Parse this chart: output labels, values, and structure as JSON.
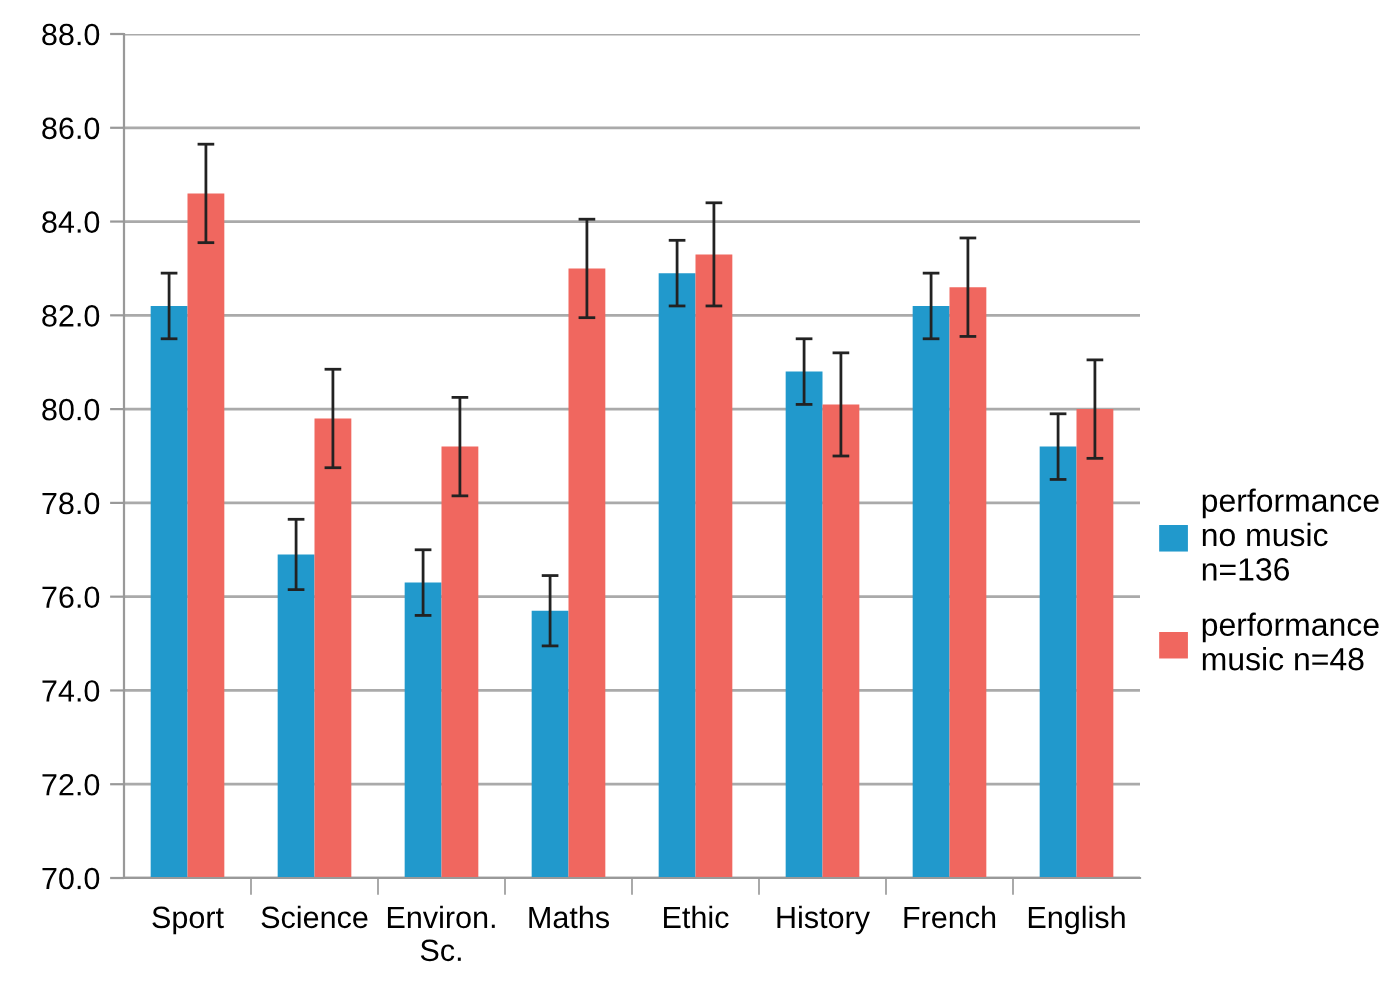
{
  "chart_data": {
    "type": "bar",
    "categories": [
      "Sport",
      "Science",
      "Environ.\nSc.",
      "Maths",
      "Ethic",
      "History",
      "French",
      "English"
    ],
    "series": [
      {
        "name": "performance\nno music\nn=136",
        "color": "#2199cc",
        "values": [
          82.2,
          76.9,
          76.3,
          75.7,
          82.9,
          80.8,
          82.2,
          79.2
        ],
        "errors": [
          0.7,
          0.75,
          0.7,
          0.75,
          0.7,
          0.7,
          0.7,
          0.7
        ]
      },
      {
        "name": "performance\nmusic n=48",
        "color": "#f0675f",
        "values": [
          84.6,
          79.8,
          79.2,
          83.0,
          83.3,
          80.1,
          82.6,
          80.0
        ],
        "errors": [
          1.05,
          1.05,
          1.05,
          1.05,
          1.1,
          1.1,
          1.05,
          1.05
        ]
      }
    ],
    "ylim": [
      70,
      88
    ],
    "yticks": [
      {
        "value": 70,
        "label": "70.0"
      },
      {
        "value": 72,
        "label": "72.0"
      },
      {
        "value": 74,
        "label": "74.0"
      },
      {
        "value": 76,
        "label": "76.0"
      },
      {
        "value": 78,
        "label": "78.0"
      },
      {
        "value": 80,
        "label": "80.0"
      },
      {
        "value": 82,
        "label": "82.0"
      },
      {
        "value": 84,
        "label": "84.0"
      },
      {
        "value": 86,
        "label": "86.0"
      },
      {
        "value": 88,
        "label": "88.0"
      }
    ],
    "grid": "y",
    "legend": "right"
  }
}
